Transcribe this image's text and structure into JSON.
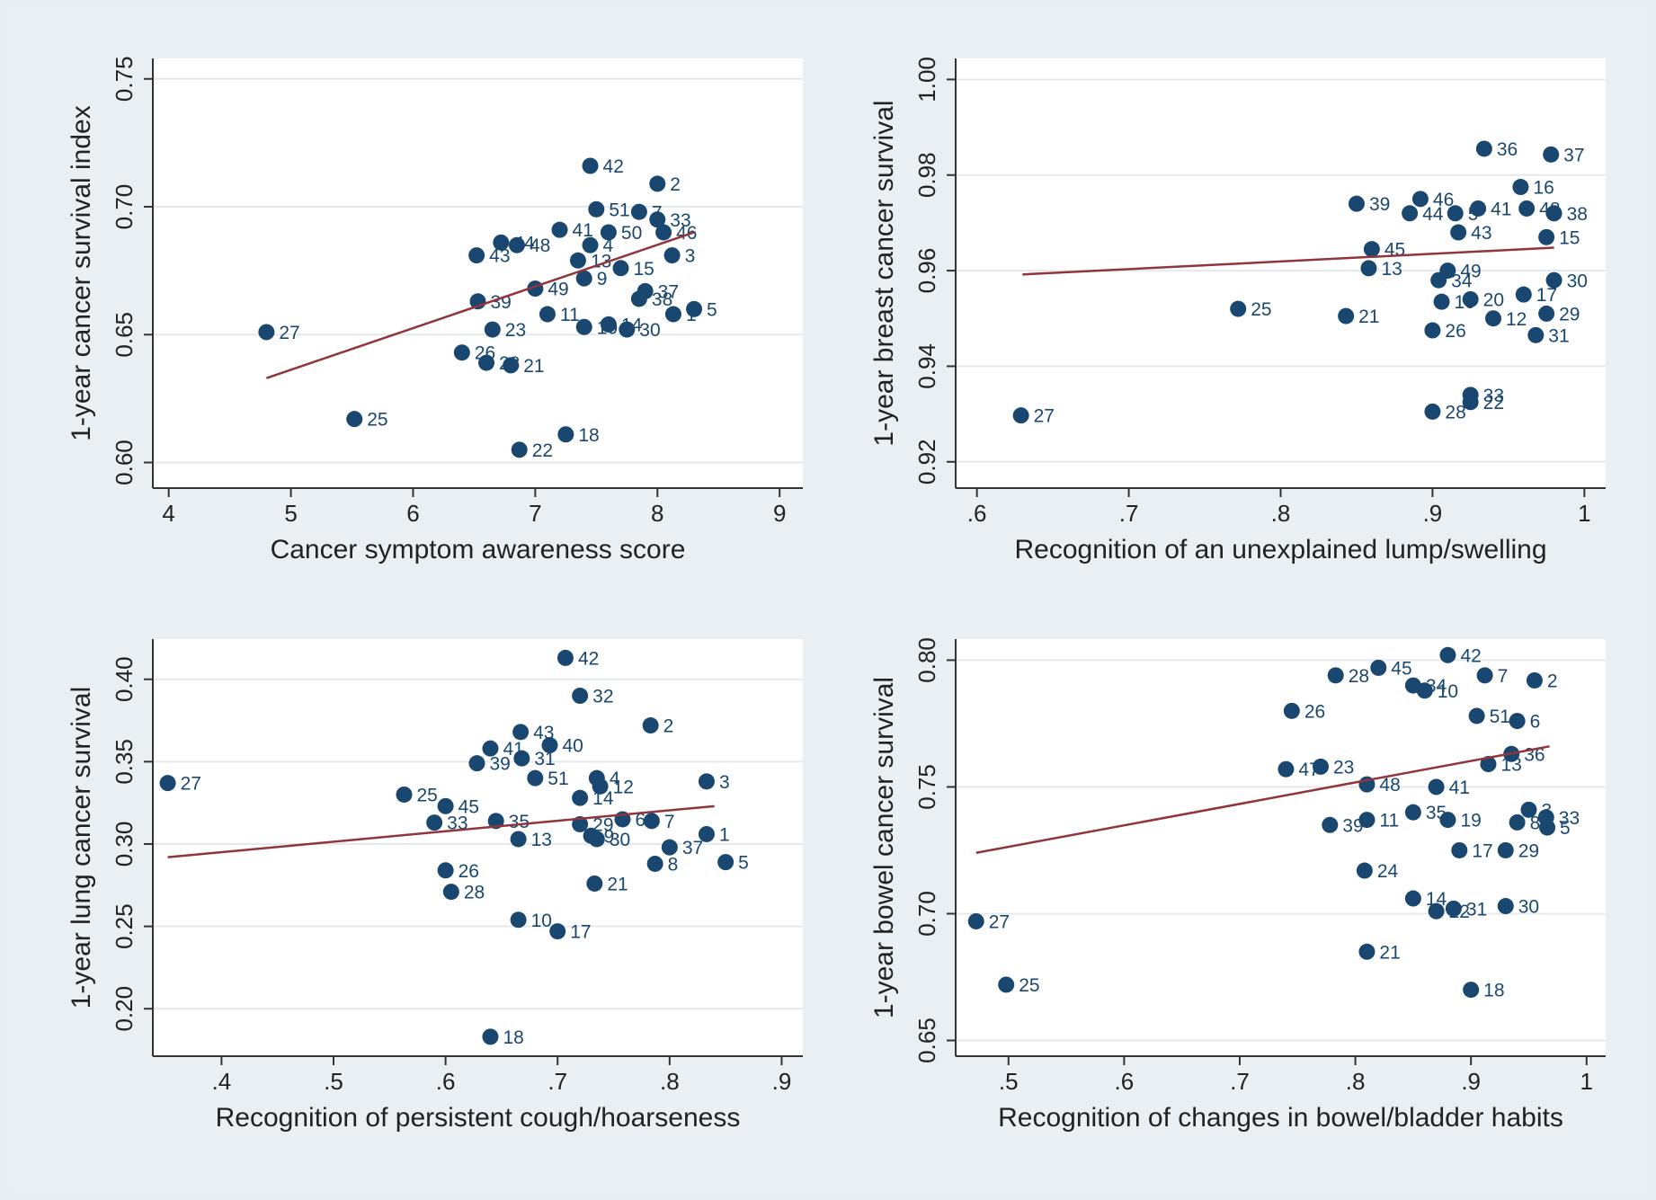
{
  "chart_data": [
    {
      "type": "scatter",
      "x_label": "Cancer symptom awareness score",
      "y_label": "1-year cancer survival index",
      "xlim": [
        3.87,
        9.19
      ],
      "ylim": [
        0.59,
        0.758
      ],
      "xticks": [
        4,
        5,
        6,
        7,
        8,
        9
      ],
      "yticks": [
        {
          "value": 0.6,
          "label": "0.60"
        },
        {
          "value": 0.65,
          "label": "0.65"
        },
        {
          "value": 0.7,
          "label": "0.70"
        },
        {
          "value": 0.75,
          "label": "0.75"
        }
      ],
      "grid": true,
      "color": "#1a476f",
      "x": [
        7.45,
        8.0,
        4.8,
        5.52,
        6.87,
        7.25,
        8.12,
        8.3,
        8.13,
        7.75,
        6.65,
        6.4,
        6.8,
        6.6,
        6.53,
        6.52,
        6.72,
        6.85,
        7.2,
        7.0,
        7.5,
        7.85,
        8.0,
        8.05,
        7.7,
        7.45,
        7.1,
        7.6,
        7.4,
        7.35,
        7.85,
        7.6,
        7.4,
        7.9
      ],
      "values": [
        0.716,
        0.709,
        0.651,
        0.617,
        0.605,
        0.611,
        0.681,
        0.66,
        0.658,
        0.652,
        0.652,
        0.643,
        0.638,
        0.639,
        0.663,
        0.681,
        0.686,
        0.685,
        0.691,
        0.668,
        0.699,
        0.698,
        0.695,
        0.69,
        0.676,
        0.685,
        0.658,
        0.654,
        0.653,
        0.679,
        0.664,
        0.69,
        0.672,
        0.667
      ],
      "point_labels": [
        "42",
        "2",
        "27",
        "25",
        "22",
        "18",
        "3",
        "5",
        "1",
        "30",
        "23",
        "26",
        "21",
        "28",
        "39",
        "43",
        "44",
        "48",
        "41",
        "49",
        "51",
        "7",
        "33",
        "46",
        "15",
        "4",
        "11",
        "14",
        "10",
        "13",
        "38",
        "50",
        "9",
        "37"
      ],
      "fit_line": {
        "color": "#90353b",
        "x": [
          4.8,
          8.3
        ],
        "values": [
          0.633,
          0.69
        ]
      }
    },
    {
      "type": "scatter",
      "x_label": "Recognition of an unexplained lump/swelling",
      "y_label": "1-year breast cancer survival",
      "xlim": [
        0.586,
        1.014
      ],
      "ylim": [
        0.9145,
        1.0044
      ],
      "xticks": [
        {
          "value": 0.6,
          "label": ".6"
        },
        {
          "value": 0.7,
          "label": ".7"
        },
        {
          "value": 0.8,
          "label": ".8"
        },
        {
          "value": 0.9,
          "label": ".9"
        },
        1
      ],
      "yticks": [
        {
          "value": 0.92,
          "label": "0.92"
        },
        {
          "value": 0.94,
          "label": "0.94"
        },
        {
          "value": 0.96,
          "label": "0.96"
        },
        {
          "value": 0.98,
          "label": "0.98"
        },
        {
          "value": 1.0,
          "label": "1.00"
        }
      ],
      "grid": true,
      "color": "#1a476f",
      "x": [
        0.934,
        0.978,
        0.958,
        0.85,
        0.892,
        0.885,
        0.93,
        0.915,
        0.962,
        0.98,
        0.917,
        0.975,
        0.86,
        0.858,
        0.91,
        0.904,
        0.772,
        0.843,
        0.9,
        0.906,
        0.925,
        0.96,
        0.94,
        0.968,
        0.975,
        0.98,
        0.925,
        0.925,
        0.9,
        0.629
      ],
      "values": [
        0.9855,
        0.9843,
        0.9775,
        0.974,
        0.975,
        0.972,
        0.973,
        0.972,
        0.973,
        0.972,
        0.968,
        0.967,
        0.9645,
        0.9605,
        0.96,
        0.958,
        0.952,
        0.9505,
        0.9475,
        0.9535,
        0.954,
        0.955,
        0.95,
        0.9465,
        0.951,
        0.958,
        0.934,
        0.9325,
        0.9305,
        0.9297
      ],
      "point_labels": [
        "36",
        "37",
        "16",
        "39",
        "46",
        "44",
        "41",
        "5",
        "48",
        "38",
        "43",
        "15",
        "45",
        "13",
        "49",
        "34",
        "25",
        "21",
        "26",
        "10",
        "20",
        "17",
        "12",
        "31",
        "29",
        "30",
        "33",
        "22",
        "28",
        "27"
      ],
      "fit_line": {
        "color": "#90353b",
        "x": [
          0.63,
          0.98
        ],
        "values": [
          0.9592,
          0.9648
        ]
      }
    },
    {
      "type": "scatter",
      "x_label": "Recognition of persistent cough/hoarseness",
      "y_label": "1-year lung cancer survival",
      "xlim": [
        0.3387,
        0.9189
      ],
      "ylim": [
        0.1712,
        0.4244
      ],
      "xticks": [
        {
          "value": 0.4,
          "label": ".4"
        },
        {
          "value": 0.5,
          "label": ".5"
        },
        {
          "value": 0.6,
          "label": ".6"
        },
        {
          "value": 0.7,
          "label": ".7"
        },
        {
          "value": 0.8,
          "label": ".8"
        },
        {
          "value": 0.9,
          "label": ".9"
        }
      ],
      "yticks": [
        {
          "value": 0.2,
          "label": "0.20"
        },
        {
          "value": 0.25,
          "label": "0.25"
        },
        {
          "value": 0.3,
          "label": "0.30"
        },
        {
          "value": 0.35,
          "label": "0.35"
        },
        {
          "value": 0.4,
          "label": "0.40"
        }
      ],
      "grid": true,
      "color": "#1a476f",
      "x": [
        0.707,
        0.72,
        0.783,
        0.352,
        0.833,
        0.667,
        0.693,
        0.668,
        0.64,
        0.628,
        0.68,
        0.735,
        0.738,
        0.563,
        0.6,
        0.72,
        0.784,
        0.758,
        0.72,
        0.59,
        0.645,
        0.833,
        0.85,
        0.8,
        0.787,
        0.735,
        0.6,
        0.605,
        0.733,
        0.665,
        0.7,
        0.64,
        0.665,
        0.73
      ],
      "values": [
        0.413,
        0.39,
        0.372,
        0.337,
        0.338,
        0.368,
        0.36,
        0.352,
        0.358,
        0.349,
        0.34,
        0.34,
        0.335,
        0.33,
        0.323,
        0.328,
        0.314,
        0.315,
        0.312,
        0.313,
        0.314,
        0.306,
        0.289,
        0.298,
        0.288,
        0.303,
        0.284,
        0.271,
        0.276,
        0.254,
        0.247,
        0.183,
        0.303,
        0.305
      ],
      "point_labels": [
        "42",
        "32",
        "2",
        "27",
        "3",
        "43",
        "40",
        "31",
        "41",
        "39",
        "51",
        "4",
        "12",
        "25",
        "45",
        "14",
        "7",
        "6",
        "29",
        "33",
        "35",
        "1",
        "5",
        "37",
        "8",
        "30",
        "26",
        "28",
        "21",
        "10",
        "17",
        "18",
        "13",
        "9"
      ],
      "fit_line": {
        "color": "#90353b",
        "x": [
          0.352,
          0.84
        ],
        "values": [
          0.292,
          0.323
        ]
      }
    },
    {
      "type": "scatter",
      "x_label": "Recognition of changes in bowel/bladder habits",
      "y_label": "1-year bowel cancer survival",
      "xlim": [
        0.4543,
        1.0165
      ],
      "ylim": [
        0.6438,
        0.8083
      ],
      "xticks": [
        {
          "value": 0.5,
          "label": ".5"
        },
        {
          "value": 0.6,
          "label": ".6"
        },
        {
          "value": 0.7,
          "label": ".7"
        },
        {
          "value": 0.8,
          "label": ".8"
        },
        {
          "value": 0.9,
          "label": ".9"
        },
        1
      ],
      "yticks": [
        {
          "value": 0.65,
          "label": "0.65"
        },
        {
          "value": 0.7,
          "label": "0.70"
        },
        {
          "value": 0.75,
          "label": "0.75"
        },
        {
          "value": 0.8,
          "label": "0.80"
        }
      ],
      "grid": true,
      "color": "#1a476f",
      "x": [
        0.88,
        0.82,
        0.783,
        0.912,
        0.955,
        0.85,
        0.86,
        0.745,
        0.905,
        0.94,
        0.74,
        0.77,
        0.915,
        0.935,
        0.87,
        0.81,
        0.85,
        0.81,
        0.88,
        0.95,
        0.965,
        0.966,
        0.94,
        0.778,
        0.89,
        0.93,
        0.808,
        0.85,
        0.87,
        0.885,
        0.93,
        0.472,
        0.81,
        0.498,
        0.9
      ],
      "values": [
        0.802,
        0.797,
        0.794,
        0.794,
        0.792,
        0.79,
        0.788,
        0.78,
        0.778,
        0.776,
        0.757,
        0.758,
        0.759,
        0.763,
        0.75,
        0.751,
        0.74,
        0.737,
        0.737,
        0.741,
        0.738,
        0.734,
        0.736,
        0.735,
        0.725,
        0.725,
        0.717,
        0.706,
        0.701,
        0.702,
        0.703,
        0.697,
        0.685,
        0.672,
        0.67
      ],
      "point_labels": [
        "42",
        "45",
        "28",
        "7",
        "2",
        "34",
        "10",
        "26",
        "51",
        "6",
        "47",
        "23",
        "13",
        "36",
        "41",
        "48",
        "35",
        "11",
        "19",
        "3",
        "33",
        "5",
        "8",
        "39",
        "17",
        "29",
        "24",
        "14",
        "22",
        "31",
        "30",
        "27",
        "21",
        "25",
        "18"
      ],
      "fit_line": {
        "color": "#90353b",
        "x": [
          0.472,
          0.968
        ],
        "values": [
          0.724,
          0.766
        ]
      }
    }
  ]
}
